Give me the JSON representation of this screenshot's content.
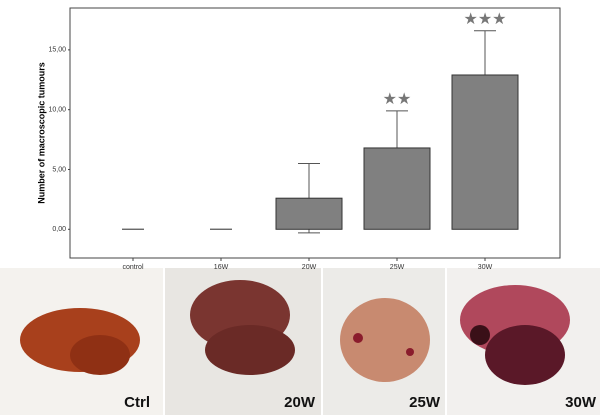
{
  "chart_data": {
    "type": "bar",
    "y_label": "Number of macroscopic tumours",
    "categories": [
      "control",
      "16W",
      "20W",
      "25W",
      "30W"
    ],
    "values": [
      0,
      0,
      2.6,
      6.8,
      12.9
    ],
    "errors": [
      0,
      0,
      2.9,
      3.1,
      3.7
    ],
    "color": "#808080",
    "ylim": [
      -2.4,
      18.5
    ],
    "yticks": [
      {
        "value": 0,
        "label": "0,00"
      },
      {
        "value": 5,
        "label": "5,00"
      },
      {
        "value": 10,
        "label": "10,00"
      },
      {
        "value": 15,
        "label": "15,00"
      }
    ],
    "annotations": [
      {
        "category": "25W",
        "text": "★★"
      },
      {
        "category": "30W",
        "text": "★★★"
      }
    ]
  },
  "photos": [
    {
      "label": "Ctrl"
    },
    {
      "label": "20W"
    },
    {
      "label": "25W"
    },
    {
      "label": "30W"
    }
  ]
}
